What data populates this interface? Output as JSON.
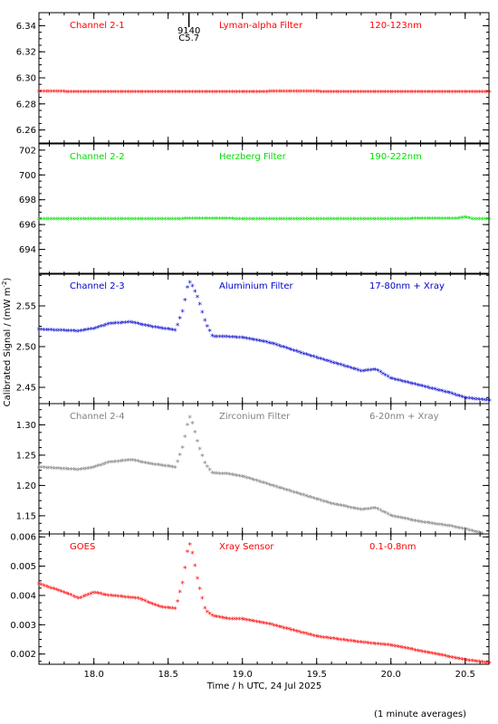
{
  "figure": {
    "ylabel": "Calibrated Signal / (mW m",
    "ylabel_sup": "-2",
    "ylabel_close": ")",
    "xlabel": "Time / h UTC, 24 Jul 2025",
    "footnote": "(1 minute averages)",
    "x_range": [
      17.63,
      20.66
    ],
    "x_ticks": [
      18.0,
      18.5,
      19.0,
      19.5,
      20.0,
      20.5
    ],
    "x_tick_labels": [
      "18.0",
      "18.5",
      "19.0",
      "19.5",
      "20.0",
      "20.5"
    ],
    "flare_marker": {
      "x": 18.64,
      "label_top": "9140",
      "label_bottom": "C5.7"
    }
  },
  "chart_data": [
    {
      "type": "scatter",
      "channel": "Channel 2-1",
      "filter": "Lyman-alpha Filter",
      "band": "120-123nm",
      "color": "#ff0000",
      "ylim": [
        6.25,
        6.35
      ],
      "y_ticks": [
        6.26,
        6.28,
        6.3,
        6.32,
        6.34
      ],
      "y_tick_labels": [
        "6.26",
        "6.28",
        "6.30",
        "6.32",
        "6.34"
      ],
      "profile_x": [
        17.63,
        18.0,
        18.5,
        19.0,
        19.45,
        19.55,
        20.0,
        20.66
      ],
      "profile_y": [
        6.2895,
        6.2893,
        6.2892,
        6.2893,
        6.2896,
        6.2893,
        6.2892,
        6.2892
      ]
    },
    {
      "type": "scatter",
      "channel": "Channel 2-2",
      "filter": "Herzberg Filter",
      "band": "190-222nm",
      "color": "#00dd00",
      "ylim": [
        692.0,
        702.5
      ],
      "y_ticks": [
        694,
        696,
        698,
        700,
        702
      ],
      "y_tick_labels": [
        "694",
        "696",
        "698",
        "700",
        "702"
      ],
      "profile_x": [
        17.63,
        18.0,
        18.5,
        18.8,
        19.0,
        19.5,
        20.0,
        20.45,
        20.5,
        20.55,
        20.66
      ],
      "profile_y": [
        696.45,
        696.45,
        696.45,
        696.5,
        696.45,
        696.45,
        696.45,
        696.5,
        696.6,
        696.45,
        696.45
      ]
    },
    {
      "type": "scatter",
      "channel": "Channel 2-3",
      "filter": "Aluminium Filter",
      "band": "17-80nm + Xray",
      "color": "#0000cc",
      "ylim": [
        2.43,
        2.59
      ],
      "y_ticks": [
        2.45,
        2.5,
        2.55
      ],
      "y_tick_labels": [
        "2.45",
        "2.50",
        "2.55"
      ],
      "profile_x": [
        17.63,
        17.9,
        18.0,
        18.1,
        18.25,
        18.4,
        18.55,
        18.6,
        18.63,
        18.65,
        18.7,
        18.75,
        18.8,
        18.9,
        19.0,
        19.2,
        19.4,
        19.6,
        19.8,
        19.9,
        20.0,
        20.2,
        20.4,
        20.5,
        20.66
      ],
      "profile_y": [
        2.521,
        2.519,
        2.522,
        2.528,
        2.53,
        2.524,
        2.52,
        2.545,
        2.573,
        2.58,
        2.56,
        2.53,
        2.512,
        2.512,
        2.511,
        2.504,
        2.492,
        2.481,
        2.47,
        2.472,
        2.461,
        2.452,
        2.443,
        2.437,
        2.434
      ]
    },
    {
      "type": "scatter",
      "channel": "Channel 2-4",
      "filter": "Zirconium Filter",
      "band": "6-20nm + Xray",
      "color": "#808080",
      "ylim": [
        1.12,
        1.335
      ],
      "y_ticks": [
        1.15,
        1.2,
        1.25,
        1.3
      ],
      "y_tick_labels": [
        "1.15",
        "1.20",
        "1.25",
        "1.30"
      ],
      "profile_x": [
        17.63,
        17.9,
        18.0,
        18.1,
        18.25,
        18.4,
        18.55,
        18.6,
        18.63,
        18.65,
        18.7,
        18.75,
        18.8,
        18.9,
        19.0,
        19.2,
        19.4,
        19.6,
        19.8,
        19.9,
        20.0,
        20.2,
        20.4,
        20.5,
        20.66
      ],
      "profile_y": [
        1.23,
        1.226,
        1.23,
        1.238,
        1.242,
        1.235,
        1.23,
        1.265,
        1.3,
        1.315,
        1.27,
        1.235,
        1.22,
        1.219,
        1.215,
        1.2,
        1.185,
        1.17,
        1.16,
        1.163,
        1.15,
        1.14,
        1.133,
        1.128,
        1.118
      ]
    },
    {
      "type": "scatter",
      "channel": "GOES",
      "filter": "Xray Sensor",
      "band": "0.1-0.8nm",
      "color": "#ff0000",
      "ylim": [
        0.00165,
        0.0061
      ],
      "y_ticks": [
        0.002,
        0.003,
        0.004,
        0.005,
        0.006
      ],
      "y_tick_labels": [
        "0.002",
        "0.003",
        "0.004",
        "0.005",
        "0.006"
      ],
      "profile_x": [
        17.63,
        17.8,
        17.9,
        18.0,
        18.1,
        18.3,
        18.45,
        18.55,
        18.6,
        18.63,
        18.65,
        18.7,
        18.75,
        18.8,
        18.9,
        19.0,
        19.2,
        19.5,
        19.8,
        20.0,
        20.3,
        20.5,
        20.66
      ],
      "profile_y": [
        0.0044,
        0.0041,
        0.0039,
        0.0041,
        0.004,
        0.0039,
        0.0036,
        0.00355,
        0.0045,
        0.0055,
        0.0058,
        0.0045,
        0.0035,
        0.0033,
        0.0032,
        0.0032,
        0.003,
        0.0026,
        0.0024,
        0.0023,
        0.002,
        0.0018,
        0.0017
      ]
    }
  ]
}
